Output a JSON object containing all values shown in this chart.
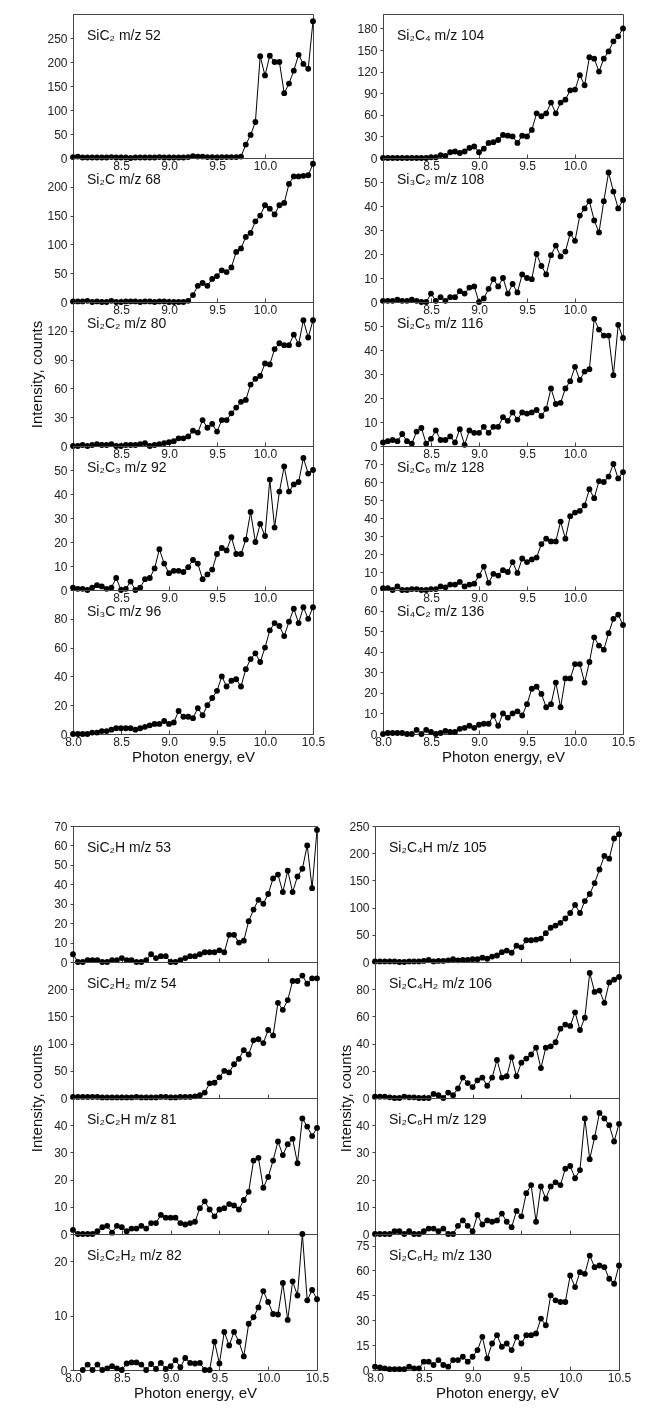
{
  "chart_data": [
    {
      "type": "line",
      "title": "SiC₂ m/z 52",
      "color": "#000000",
      "marker": "circle",
      "line_style": "solid",
      "x": [
        8,
        8.05,
        8.1,
        8.15,
        8.2,
        8.25,
        8.3,
        8.35,
        8.4,
        8.45,
        8.5,
        8.55,
        8.6,
        8.65,
        8.7,
        8.75,
        8.8,
        8.85,
        8.9,
        8.95,
        9,
        9.05,
        9.1,
        9.15,
        9.2,
        9.25,
        9.3,
        9.35,
        9.4,
        9.45,
        9.5,
        9.55,
        9.6,
        9.65,
        9.7,
        9.75,
        9.8,
        9.85,
        9.9,
        9.95,
        10,
        10.05,
        10.1,
        10.15,
        10.2,
        10.25,
        10.3,
        10.35,
        10.4,
        10.45,
        10.5
      ],
      "values": [
        2,
        3,
        1,
        1,
        1,
        1,
        1,
        1,
        2,
        1,
        1,
        1,
        0,
        1,
        1,
        1,
        1,
        1,
        2,
        1,
        1,
        1,
        1,
        1,
        2,
        4,
        3,
        3,
        2,
        2,
        1,
        2,
        2,
        2,
        2,
        3,
        28,
        48,
        75,
        212,
        172,
        213,
        200,
        200,
        135,
        155,
        182,
        215,
        196,
        186,
        285
      ],
      "xlim": [
        8,
        10.5
      ],
      "xticks": [
        {
          "value": 8,
          "label": null
        },
        8.5,
        {
          "value": 9,
          "label": "9.0"
        },
        9.5,
        {
          "value": 10,
          "label": "10.0"
        },
        {
          "value": 10.5,
          "label": null
        }
      ],
      "ylim": [
        0,
        300
      ],
      "yticks": [
        0,
        50,
        100,
        150,
        200,
        250
      ]
    },
    {
      "type": "line",
      "title": "Si₂C m/z 68",
      "color": "#000000",
      "marker": "circle",
      "line_style": "solid",
      "x": [
        8,
        8.05,
        8.1,
        8.15,
        8.2,
        8.25,
        8.3,
        8.35,
        8.4,
        8.45,
        8.5,
        8.55,
        8.6,
        8.65,
        8.7,
        8.75,
        8.8,
        8.85,
        8.9,
        8.95,
        9,
        9.05,
        9.1,
        9.15,
        9.2,
        9.25,
        9.3,
        9.35,
        9.4,
        9.45,
        9.5,
        9.55,
        9.6,
        9.65,
        9.7,
        9.75,
        9.8,
        9.85,
        9.9,
        9.95,
        10,
        10.05,
        10.1,
        10.15,
        10.2,
        10.25,
        10.3,
        10.35,
        10.4,
        10.45,
        10.5
      ],
      "values": [
        1,
        1,
        1,
        2,
        0,
        1,
        0,
        0,
        2,
        0,
        0,
        1,
        1,
        1,
        0,
        1,
        1,
        0,
        1,
        1,
        0,
        0,
        0,
        0,
        2,
        12,
        28,
        33,
        28,
        40,
        45,
        55,
        52,
        60,
        87,
        93,
        113,
        120,
        140,
        150,
        168,
        162,
        152,
        168,
        172,
        205,
        218,
        218,
        219,
        220,
        240
      ],
      "xlim": [
        8,
        10.5
      ],
      "xticks": [
        {
          "value": 8,
          "label": null
        },
        8.5,
        {
          "value": 9,
          "label": "9.0"
        },
        9.5,
        {
          "value": 10,
          "label": "10.0"
        },
        {
          "value": 10.5,
          "label": null
        }
      ],
      "ylim": [
        0,
        250
      ],
      "yticks": [
        0,
        50,
        100,
        150,
        200
      ]
    },
    {
      "type": "line",
      "title": "Si₂C₂ m/z 80",
      "ylabel": "Intensity, counts",
      "color": "#000000",
      "marker": "circle",
      "line_style": "solid",
      "x": [
        8,
        8.05,
        8.1,
        8.15,
        8.2,
        8.25,
        8.3,
        8.35,
        8.4,
        8.45,
        8.5,
        8.55,
        8.6,
        8.65,
        8.7,
        8.75,
        8.8,
        8.85,
        8.9,
        8.95,
        9,
        9.05,
        9.1,
        9.15,
        9.2,
        9.25,
        9.3,
        9.35,
        9.4,
        9.45,
        9.5,
        9.55,
        9.6,
        9.65,
        9.7,
        9.75,
        9.8,
        9.85,
        9.9,
        9.95,
        10,
        10.05,
        10.1,
        10.15,
        10.2,
        10.25,
        10.3,
        10.35,
        10.4,
        10.45,
        10.5
      ],
      "values": [
        0,
        0,
        1,
        0,
        1,
        2,
        1,
        1,
        2,
        0,
        0,
        1,
        1,
        1,
        2,
        3,
        0,
        1,
        2,
        3,
        4,
        5,
        8,
        8,
        10,
        16,
        14,
        27,
        19,
        23,
        15,
        27,
        27,
        34,
        40,
        46,
        48,
        64,
        70,
        73,
        86,
        85,
        101,
        107,
        105,
        105,
        116,
        106,
        131,
        113,
        131
      ],
      "xlim": [
        8,
        10.5
      ],
      "xticks": [
        {
          "value": 8,
          "label": null
        },
        8.5,
        {
          "value": 9,
          "label": "9.0"
        },
        9.5,
        {
          "value": 10,
          "label": "10.0"
        },
        {
          "value": 10.5,
          "label": null
        }
      ],
      "ylim": [
        0,
        150
      ],
      "yticks": [
        0,
        30,
        60,
        90,
        120
      ]
    },
    {
      "type": "line",
      "title": "Si₂C₃ m/z 92",
      "color": "#000000",
      "marker": "circle",
      "line_style": "solid",
      "x": [
        8,
        8.05,
        8.1,
        8.15,
        8.2,
        8.25,
        8.3,
        8.35,
        8.4,
        8.45,
        8.5,
        8.55,
        8.6,
        8.65,
        8.7,
        8.75,
        8.8,
        8.85,
        8.9,
        8.95,
        9,
        9.05,
        9.1,
        9.15,
        9.2,
        9.25,
        9.3,
        9.35,
        9.4,
        9.45,
        9.5,
        9.55,
        9.6,
        9.65,
        9.7,
        9.75,
        9.8,
        9.85,
        9.9,
        9.95,
        10,
        10.05,
        10.1,
        10.15,
        10.2,
        10.25,
        10.3,
        10.35,
        10.4,
        10.45,
        10.5
      ],
      "values": [
        1,
        0.5,
        0.5,
        0,
        1,
        2,
        1.5,
        0.5,
        1,
        5,
        0,
        0.5,
        3.5,
        0,
        1,
        4.5,
        5,
        9,
        17,
        11,
        7,
        8,
        8,
        7.5,
        9.5,
        12.5,
        11,
        4.5,
        6.5,
        8.5,
        15,
        17.5,
        16.5,
        22,
        15,
        15,
        21,
        32.5,
        20,
        27.5,
        22.5,
        46,
        26,
        41,
        51.5,
        41,
        44,
        45,
        55,
        48.5,
        50
      ],
      "xlim": [
        8,
        10.5
      ],
      "xticks": [
        {
          "value": 8,
          "label": null
        },
        8.5,
        {
          "value": 9,
          "label": "9.0"
        },
        9.5,
        {
          "value": 10,
          "label": "10.0"
        },
        {
          "value": 10.5,
          "label": null
        }
      ],
      "ylim": [
        0,
        60
      ],
      "yticks": [
        0,
        10,
        20,
        30,
        40,
        50
      ]
    },
    {
      "type": "line",
      "title": "Si₃C m/z 96",
      "xlabel": "Photon energy, eV",
      "color": "#000000",
      "marker": "circle",
      "line_style": "solid",
      "x": [
        8,
        8.05,
        8.1,
        8.15,
        8.2,
        8.25,
        8.3,
        8.35,
        8.4,
        8.45,
        8.5,
        8.55,
        8.6,
        8.65,
        8.7,
        8.75,
        8.8,
        8.85,
        8.9,
        8.95,
        9,
        9.05,
        9.1,
        9.15,
        9.2,
        9.25,
        9.3,
        9.35,
        9.4,
        9.45,
        9.5,
        9.55,
        9.6,
        9.65,
        9.7,
        9.75,
        9.8,
        9.85,
        9.9,
        9.95,
        10,
        10.05,
        10.1,
        10.15,
        10.2,
        10.25,
        10.3,
        10.35,
        10.4,
        10.45,
        10.5
      ],
      "values": [
        0,
        0,
        0,
        0,
        1,
        1,
        2,
        2,
        3,
        4,
        4,
        4,
        4,
        3,
        4,
        5,
        6,
        7,
        7,
        9,
        7,
        8,
        16,
        12,
        12,
        11,
        18,
        13,
        20,
        25,
        30,
        40,
        33,
        37,
        38,
        33,
        45,
        52,
        56,
        50,
        60,
        72,
        77,
        75,
        68,
        78,
        87,
        77,
        88,
        80,
        88
      ],
      "xlim": [
        8,
        10.5
      ],
      "xticks": [
        {
          "value": 8,
          "label": "8.0"
        },
        8.5,
        {
          "value": 9,
          "label": "9.0"
        },
        9.5,
        {
          "value": 10,
          "label": "10.0"
        },
        10.5
      ],
      "ylim": [
        0,
        100
      ],
      "yticks": [
        0,
        20,
        40,
        60,
        80
      ]
    },
    {
      "type": "line",
      "title": "Si₂C₄ m/z 104",
      "color": "#000000",
      "marker": "circle",
      "line_style": "solid",
      "x": [
        8,
        8.05,
        8.1,
        8.15,
        8.2,
        8.25,
        8.3,
        8.35,
        8.4,
        8.45,
        8.5,
        8.55,
        8.6,
        8.65,
        8.7,
        8.75,
        8.8,
        8.85,
        8.9,
        8.95,
        9,
        9.05,
        9.1,
        9.15,
        9.2,
        9.25,
        9.3,
        9.35,
        9.4,
        9.45,
        9.5,
        9.55,
        9.6,
        9.65,
        9.7,
        9.75,
        9.8,
        9.85,
        9.9,
        9.95,
        10,
        10.05,
        10.1,
        10.15,
        10.2,
        10.25,
        10.3,
        10.35,
        10.4,
        10.45,
        10.5
      ],
      "values": [
        0,
        0,
        0,
        0,
        0,
        0,
        0,
        0,
        0,
        0,
        1,
        1,
        4,
        3,
        8,
        9,
        7,
        9,
        14,
        16,
        8,
        13,
        21,
        22,
        25,
        32,
        31,
        30,
        21,
        31,
        30,
        39,
        62,
        58,
        62,
        77,
        62,
        77,
        81,
        94,
        95,
        115,
        101,
        140,
        138,
        120,
        138,
        148,
        162,
        169,
        180
      ],
      "xlim": [
        8,
        10.5
      ],
      "xticks": [
        {
          "value": 8,
          "label": null
        },
        8.5,
        {
          "value": 9,
          "label": "9.0"
        },
        9.5,
        {
          "value": 10,
          "label": "10.0"
        },
        {
          "value": 10.5,
          "label": null
        }
      ],
      "ylim": [
        0,
        200
      ],
      "yticks": [
        0,
        30,
        60,
        90,
        120,
        150,
        180
      ]
    },
    {
      "type": "line",
      "title": "Si₃C₂ m/z 108",
      "color": "#000000",
      "marker": "circle",
      "line_style": "solid",
      "x": [
        8,
        8.05,
        8.1,
        8.15,
        8.2,
        8.25,
        8.3,
        8.35,
        8.4,
        8.45,
        8.5,
        8.55,
        8.6,
        8.65,
        8.7,
        8.75,
        8.8,
        8.85,
        8.9,
        8.95,
        9,
        9.05,
        9.1,
        9.15,
        9.2,
        9.25,
        9.3,
        9.35,
        9.4,
        9.45,
        9.5,
        9.55,
        9.6,
        9.65,
        9.7,
        9.75,
        9.8,
        9.85,
        9.9,
        9.95,
        10,
        10.05,
        10.1,
        10.15,
        10.2,
        10.25,
        10.3,
        10.35,
        10.4,
        10.45,
        10.5
      ],
      "values": [
        0.5,
        0.5,
        0.5,
        1,
        0.5,
        0.5,
        1,
        0.5,
        0,
        0,
        3.5,
        0.5,
        2,
        0.5,
        2,
        2,
        4.5,
        3.5,
        6,
        6.5,
        0,
        1.5,
        5.5,
        9.5,
        6.5,
        10,
        3.5,
        7.5,
        4,
        11.5,
        10,
        9.5,
        20,
        15,
        11.5,
        19.5,
        23.5,
        19,
        21,
        28.5,
        25.5,
        36,
        39,
        42,
        34,
        29,
        42,
        54,
        46,
        39,
        42.5
      ],
      "xlim": [
        8,
        10.5
      ],
      "xticks": [
        {
          "value": 8,
          "label": null
        },
        8.5,
        {
          "value": 9,
          "label": "9.0"
        },
        9.5,
        {
          "value": 10,
          "label": "10.0"
        },
        {
          "value": 10.5,
          "label": null
        }
      ],
      "ylim": [
        0,
        60
      ],
      "yticks": [
        0,
        10,
        20,
        30,
        40,
        50
      ]
    },
    {
      "type": "line",
      "title": "Si₂C₅ m/z 116",
      "color": "#000000",
      "marker": "circle",
      "line_style": "solid",
      "x": [
        8,
        8.05,
        8.1,
        8.15,
        8.2,
        8.25,
        8.3,
        8.35,
        8.4,
        8.45,
        8.5,
        8.55,
        8.6,
        8.65,
        8.7,
        8.75,
        8.8,
        8.85,
        8.9,
        8.95,
        9,
        9.05,
        9.1,
        9.15,
        9.2,
        9.25,
        9.3,
        9.35,
        9.4,
        9.45,
        9.5,
        9.55,
        9.6,
        9.65,
        9.7,
        9.75,
        9.8,
        9.85,
        9.9,
        9.95,
        10,
        10.05,
        10.1,
        10.15,
        10.2,
        10.25,
        10.3,
        10.35,
        10.4,
        10.45,
        10.5
      ],
      "values": [
        1.5,
        2,
        2.5,
        2,
        5,
        2,
        1,
        6,
        7.5,
        1,
        3,
        6.5,
        2.5,
        2.5,
        4,
        1.5,
        7,
        0.5,
        6.5,
        5.5,
        5.5,
        8,
        5.5,
        8,
        8,
        12,
        10.5,
        14,
        11,
        14,
        13.5,
        14,
        15,
        12.5,
        15.5,
        24,
        17.5,
        18,
        24,
        27,
        33,
        27.5,
        31,
        32,
        53,
        48.5,
        46,
        46,
        29.5,
        50.5,
        45
      ],
      "xlim": [
        8,
        10.5
      ],
      "xticks": [
        {
          "value": 8,
          "label": null
        },
        8.5,
        {
          "value": 9,
          "label": "9.0"
        },
        9.5,
        {
          "value": 10,
          "label": "10.0"
        },
        {
          "value": 10.5,
          "label": null
        }
      ],
      "ylim": [
        0,
        60
      ],
      "yticks": [
        0,
        10,
        20,
        30,
        40,
        50
      ]
    },
    {
      "type": "line",
      "title": "Si₂C₆ m/z 128",
      "color": "#000000",
      "marker": "circle",
      "line_style": "solid",
      "x": [
        8,
        8.05,
        8.1,
        8.15,
        8.2,
        8.25,
        8.3,
        8.35,
        8.4,
        8.45,
        8.5,
        8.55,
        8.6,
        8.65,
        8.7,
        8.75,
        8.8,
        8.85,
        8.9,
        8.95,
        9,
        9.05,
        9.1,
        9.15,
        9.2,
        9.25,
        9.3,
        9.35,
        9.4,
        9.45,
        9.5,
        9.55,
        9.6,
        9.65,
        9.7,
        9.75,
        9.8,
        9.85,
        9.9,
        9.95,
        10,
        10.05,
        10.1,
        10.15,
        10.2,
        10.25,
        10.3,
        10.35,
        10.4,
        10.45,
        10.5
      ],
      "values": [
        1,
        1,
        0,
        2,
        0,
        0,
        0.5,
        0.5,
        0,
        0,
        0.5,
        0.5,
        2,
        1.5,
        3,
        3,
        4.5,
        2,
        3,
        3.5,
        8,
        13,
        4,
        9,
        8,
        11,
        10,
        15.5,
        9.5,
        17.5,
        15.5,
        17,
        18,
        25.5,
        28.5,
        27,
        27,
        38,
        28.5,
        41,
        43,
        44,
        47,
        56,
        51,
        60.5,
        60,
        63,
        70,
        62,
        65.5
      ],
      "xlim": [
        8,
        10.5
      ],
      "xticks": [
        {
          "value": 8,
          "label": null
        },
        8.5,
        {
          "value": 9,
          "label": "9.0"
        },
        9.5,
        {
          "value": 10,
          "label": "10.0"
        },
        {
          "value": 10.5,
          "label": null
        }
      ],
      "ylim": [
        0,
        80
      ],
      "yticks": [
        0,
        10,
        20,
        30,
        40,
        50,
        60,
        70
      ]
    },
    {
      "type": "line",
      "title": "Si₄C₂ m/z 136",
      "xlabel": "Photon energy, eV",
      "color": "#000000",
      "marker": "circle",
      "line_style": "solid",
      "x": [
        8,
        8.05,
        8.1,
        8.15,
        8.2,
        8.25,
        8.3,
        8.35,
        8.4,
        8.45,
        8.5,
        8.55,
        8.6,
        8.65,
        8.7,
        8.75,
        8.8,
        8.85,
        8.9,
        8.95,
        9,
        9.05,
        9.1,
        9.15,
        9.2,
        9.25,
        9.3,
        9.35,
        9.4,
        9.45,
        9.5,
        9.55,
        9.6,
        9.65,
        9.7,
        9.75,
        9.8,
        9.85,
        9.9,
        9.95,
        10,
        10.05,
        10.1,
        10.15,
        10.2,
        10.25,
        10.3,
        10.35,
        10.4,
        10.45,
        10.5
      ],
      "values": [
        0,
        0.5,
        0.5,
        0.5,
        0.5,
        0,
        0,
        2,
        0,
        2,
        1,
        0,
        0.5,
        1.5,
        1,
        1,
        2.5,
        3,
        4,
        3,
        4.5,
        5,
        5,
        9,
        4,
        10,
        8,
        10,
        11,
        9,
        14.5,
        22,
        23,
        19.5,
        13,
        14.5,
        25,
        13,
        27,
        27,
        34,
        34,
        25,
        35,
        47,
        43,
        41,
        49,
        56,
        58,
        53
      ],
      "xlim": [
        8,
        10.5
      ],
      "xticks": [
        {
          "value": 8,
          "label": "8.0"
        },
        8.5,
        {
          "value": 9,
          "label": "9.0"
        },
        9.5,
        {
          "value": 10,
          "label": "10.0"
        },
        10.5
      ],
      "ylim": [
        0,
        70
      ],
      "yticks": [
        0,
        10,
        20,
        30,
        40,
        50,
        60
      ]
    },
    {
      "type": "line",
      "title": "SiC₂H m/z 53",
      "color": "#000000",
      "marker": "circle",
      "line_style": "solid",
      "tick_labels": "y",
      "x": [
        8,
        8.05,
        8.1,
        8.15,
        8.2,
        8.25,
        8.3,
        8.35,
        8.4,
        8.45,
        8.5,
        8.55,
        8.6,
        8.65,
        8.7,
        8.75,
        8.8,
        8.85,
        8.9,
        8.95,
        9,
        9.05,
        9.1,
        9.15,
        9.2,
        9.25,
        9.3,
        9.35,
        9.4,
        9.45,
        9.5,
        9.55,
        9.6,
        9.65,
        9.7,
        9.75,
        9.8,
        9.85,
        9.9,
        9.95,
        10,
        10.05,
        10.1,
        10.15,
        10.2,
        10.25,
        10.3,
        10.35,
        10.4,
        10.45,
        10.5
      ],
      "values": [
        4,
        0,
        0,
        1,
        1,
        1,
        0,
        0,
        1,
        1,
        2,
        1,
        1,
        0,
        0,
        1,
        4,
        2,
        3,
        3,
        0,
        0,
        1,
        2,
        3,
        3,
        4,
        5,
        5,
        5,
        6,
        5,
        14,
        14,
        10,
        11,
        21,
        27,
        32,
        30,
        35,
        43,
        45,
        36,
        47,
        36,
        44,
        48,
        60,
        38,
        68
      ],
      "xlim": [
        8,
        10.5
      ],
      "xticks": [
        8,
        8.5,
        9,
        9.5,
        10,
        10.5
      ],
      "ylim": [
        0,
        70
      ],
      "yticks": [
        0,
        10,
        20,
        30,
        40,
        50,
        60,
        70
      ]
    },
    {
      "type": "line",
      "title": "SiC₂H₂ m/z 54",
      "ylabel": "Intensity, counts",
      "color": "#000000",
      "marker": "circle",
      "line_style": "solid",
      "tick_labels": "y",
      "x": [
        8,
        8.05,
        8.1,
        8.15,
        8.2,
        8.25,
        8.3,
        8.35,
        8.4,
        8.45,
        8.5,
        8.55,
        8.6,
        8.65,
        8.7,
        8.75,
        8.8,
        8.85,
        8.9,
        8.95,
        9,
        9.05,
        9.1,
        9.15,
        9.2,
        9.25,
        9.3,
        9.35,
        9.4,
        9.45,
        9.5,
        9.55,
        9.6,
        9.65,
        9.7,
        9.75,
        9.8,
        9.85,
        9.9,
        9.95,
        10,
        10.05,
        10.1,
        10.15,
        10.2,
        10.25,
        10.3,
        10.35,
        10.4,
        10.45,
        10.5
      ],
      "values": [
        2,
        2,
        2,
        2,
        2,
        2,
        1,
        1,
        1,
        1,
        1,
        1,
        1,
        2,
        1,
        1,
        1,
        1,
        2,
        2,
        1,
        1,
        2,
        2,
        2,
        3,
        5,
        10,
        27,
        28,
        38,
        50,
        47,
        62,
        72,
        88,
        80,
        106,
        108,
        101,
        125,
        115,
        175,
        162,
        180,
        215,
        215,
        225,
        210,
        220,
        220
      ],
      "xlim": [
        8,
        10.5
      ],
      "xticks": [
        8,
        8.5,
        9,
        9.5,
        10,
        10.5
      ],
      "ylim": [
        0,
        250
      ],
      "yticks": [
        0,
        50,
        100,
        150,
        200
      ]
    },
    {
      "type": "line",
      "title": "Si₂C₂H m/z 81",
      "color": "#000000",
      "marker": "circle",
      "line_style": "solid",
      "tick_labels": "y",
      "x": [
        8,
        8.05,
        8.1,
        8.15,
        8.2,
        8.25,
        8.3,
        8.35,
        8.4,
        8.45,
        8.5,
        8.55,
        8.6,
        8.65,
        8.7,
        8.75,
        8.8,
        8.85,
        8.9,
        8.95,
        9,
        9.05,
        9.1,
        9.15,
        9.2,
        9.25,
        9.3,
        9.35,
        9.4,
        9.45,
        9.5,
        9.55,
        9.6,
        9.65,
        9.7,
        9.75,
        9.8,
        9.85,
        9.9,
        9.95,
        10,
        10.05,
        10.1,
        10.15,
        10.2,
        10.25,
        10.3,
        10.35,
        10.4,
        10.45,
        10.5
      ],
      "values": [
        1.5,
        0,
        0,
        0,
        0,
        1,
        2.5,
        3,
        0.5,
        3,
        2.5,
        1,
        2,
        2,
        3,
        2,
        4,
        4,
        7,
        6,
        6,
        6,
        4,
        3.5,
        4,
        4.5,
        9.5,
        12,
        9,
        6.5,
        9,
        9.5,
        11,
        10.5,
        9,
        12.5,
        15.5,
        27,
        28,
        17,
        21,
        27,
        34,
        29,
        33,
        35,
        26,
        42.5,
        39.5,
        36,
        39
      ],
      "xlim": [
        8,
        10.5
      ],
      "xticks": [
        8,
        8.5,
        9,
        9.5,
        10,
        10.5
      ],
      "ylim": [
        0,
        50
      ],
      "yticks": [
        0,
        10,
        20,
        30,
        40
      ]
    },
    {
      "type": "line",
      "title": "Si₂C₂H₂ m/z 82",
      "xlabel": "Photon energy, eV",
      "color": "#000000",
      "marker": "circle",
      "line_style": "solid",
      "x": [
        8.1,
        8.15,
        8.2,
        8.25,
        8.3,
        8.35,
        8.4,
        8.45,
        8.5,
        8.55,
        8.6,
        8.65,
        8.7,
        8.75,
        8.8,
        8.85,
        8.9,
        8.95,
        9,
        9.05,
        9.1,
        9.15,
        9.2,
        9.25,
        9.3,
        9.35,
        9.4,
        9.45,
        9.5,
        9.55,
        9.6,
        9.65,
        9.7,
        9.75,
        9.8,
        9.85,
        9.9,
        9.95,
        10,
        10.05,
        10.1,
        10.15,
        10.2,
        10.25,
        10.3,
        10.35,
        10.4,
        10.45,
        10.5
      ],
      "values": [
        0,
        1,
        0,
        1,
        0,
        0.3,
        0.7,
        0.3,
        0,
        1.2,
        1.4,
        1.4,
        1,
        0,
        1.1,
        0.2,
        1.3,
        0.2,
        0.7,
        1.8,
        0.5,
        2.2,
        1.3,
        1.2,
        1.3,
        0,
        0,
        5.2,
        1.2,
        7,
        4.5,
        7,
        5.2,
        2.5,
        8.5,
        9.7,
        11.5,
        14.5,
        12.5,
        10.3,
        10.2,
        16,
        9.2,
        16.3,
        13.7,
        25,
        12.8,
        14.7,
        13
      ],
      "xlim": [
        8,
        10.5
      ],
      "xticks": [
        {
          "value": 8,
          "label": "8.0"
        },
        8.5,
        {
          "value": 9,
          "label": "9.0"
        },
        9.5,
        {
          "value": 10,
          "label": "10.0"
        },
        10.5
      ],
      "ylim": [
        0,
        25
      ],
      "yticks": [
        0,
        10,
        20
      ]
    },
    {
      "type": "line",
      "title": "Si₂C₄H m/z 105",
      "color": "#000000",
      "marker": "circle",
      "line_style": "solid",
      "tick_labels": "y",
      "x": [
        8,
        8.05,
        8.1,
        8.15,
        8.2,
        8.25,
        8.3,
        8.35,
        8.4,
        8.45,
        8.5,
        8.55,
        8.6,
        8.65,
        8.7,
        8.75,
        8.8,
        8.85,
        8.9,
        8.95,
        9,
        9.05,
        9.1,
        9.15,
        9.2,
        9.25,
        9.3,
        9.35,
        9.4,
        9.45,
        9.5,
        9.55,
        9.6,
        9.65,
        9.7,
        9.75,
        9.8,
        9.85,
        9.9,
        9.95,
        10,
        10.05,
        10.1,
        10.15,
        10.2,
        10.25,
        10.3,
        10.35,
        10.4,
        10.45,
        10.5
      ],
      "values": [
        1,
        1,
        1,
        1,
        1,
        0,
        0,
        1,
        1,
        1,
        2,
        4,
        1,
        2,
        2,
        3,
        5,
        3,
        4,
        4,
        5,
        5,
        8,
        6,
        10,
        12,
        18,
        21,
        17,
        30,
        27,
        40,
        40,
        41,
        43,
        53,
        63,
        67,
        72,
        80,
        90,
        105,
        90,
        112,
        125,
        145,
        170,
        195,
        190,
        227,
        235
      ],
      "xlim": [
        8,
        10.5
      ],
      "xticks": [
        8,
        8.5,
        9,
        9.5,
        10,
        10.5
      ],
      "ylim": [
        0,
        250
      ],
      "yticks": [
        0,
        50,
        100,
        150,
        200,
        250
      ]
    },
    {
      "type": "line",
      "title": "Si₂C₄H₂ m/z 106",
      "ylabel": "Intensity, counts",
      "color": "#000000",
      "marker": "circle",
      "line_style": "solid",
      "tick_labels": "y",
      "x": [
        8,
        8.05,
        8.1,
        8.15,
        8.2,
        8.25,
        8.3,
        8.35,
        8.4,
        8.45,
        8.5,
        8.55,
        8.6,
        8.65,
        8.7,
        8.75,
        8.8,
        8.85,
        8.9,
        8.95,
        9,
        9.05,
        9.1,
        9.15,
        9.2,
        9.25,
        9.3,
        9.35,
        9.4,
        9.45,
        9.5,
        9.55,
        9.6,
        9.65,
        9.7,
        9.75,
        9.8,
        9.85,
        9.9,
        9.95,
        10,
        10.05,
        10.1,
        10.15,
        10.2,
        10.25,
        10.3,
        10.35,
        10.4,
        10.45,
        10.5
      ],
      "values": [
        1,
        1,
        1,
        0.5,
        0,
        0,
        1,
        0.5,
        0.5,
        0,
        0,
        0,
        3,
        2,
        0,
        4,
        2,
        7,
        15,
        11,
        8,
        13,
        15,
        9,
        15,
        28,
        15,
        16,
        30,
        16,
        26,
        29,
        32,
        37,
        22,
        37,
        38,
        41,
        51,
        54,
        53,
        63,
        50,
        59,
        92,
        78,
        79,
        70,
        85,
        87,
        89
      ],
      "xlim": [
        8,
        10.5
      ],
      "xticks": [
        8,
        8.5,
        9,
        9.5,
        10,
        10.5
      ],
      "ylim": [
        0,
        100
      ],
      "yticks": [
        0,
        20,
        40,
        60,
        80
      ]
    },
    {
      "type": "line",
      "title": "Si₂C₆H m/z 129",
      "color": "#000000",
      "marker": "circle",
      "line_style": "solid",
      "tick_labels": "y",
      "x": [
        8,
        8.05,
        8.1,
        8.15,
        8.2,
        8.25,
        8.3,
        8.35,
        8.4,
        8.45,
        8.5,
        8.55,
        8.6,
        8.65,
        8.7,
        8.75,
        8.8,
        8.85,
        8.9,
        8.95,
        9,
        9.05,
        9.1,
        9.15,
        9.2,
        9.25,
        9.3,
        9.35,
        9.4,
        9.45,
        9.5,
        9.55,
        9.6,
        9.65,
        9.7,
        9.75,
        9.8,
        9.85,
        9.9,
        9.95,
        10,
        10.05,
        10.1,
        10.15,
        10.2,
        10.25,
        10.3,
        10.35,
        10.4,
        10.45,
        10.5
      ],
      "values": [
        0,
        0,
        0,
        0,
        1,
        1,
        0,
        1,
        0,
        0,
        1,
        2,
        2,
        1,
        2,
        0,
        0,
        3,
        5,
        3,
        1,
        7,
        3.5,
        5,
        4.5,
        5,
        7.5,
        4.5,
        2.5,
        8.5,
        6.5,
        15,
        18,
        4.5,
        17.5,
        13,
        17.5,
        19,
        18,
        24,
        25,
        20.5,
        23.5,
        42.5,
        27.5,
        35.5,
        44.5,
        42.5,
        40,
        34,
        40.5
      ],
      "xlim": [
        8,
        10.5
      ],
      "xticks": [
        8,
        8.5,
        9,
        9.5,
        10,
        10.5
      ],
      "ylim": [
        0,
        50
      ],
      "yticks": [
        0,
        10,
        20,
        30,
        40
      ]
    },
    {
      "type": "line",
      "title": "Si₂C₆H₂ m/z 130",
      "xlabel": "Photon energy, eV",
      "color": "#000000",
      "marker": "circle",
      "line_style": "solid",
      "x": [
        8,
        8.05,
        8.1,
        8.15,
        8.2,
        8.25,
        8.3,
        8.35,
        8.4,
        8.45,
        8.5,
        8.55,
        8.6,
        8.65,
        8.7,
        8.75,
        8.8,
        8.85,
        8.9,
        8.95,
        9,
        9.05,
        9.1,
        9.15,
        9.2,
        9.25,
        9.3,
        9.35,
        9.4,
        9.45,
        9.5,
        9.55,
        9.6,
        9.65,
        9.7,
        9.75,
        9.8,
        9.85,
        9.9,
        9.95,
        10,
        10.05,
        10.1,
        10.15,
        10.2,
        10.25,
        10.3,
        10.35,
        10.4,
        10.45,
        10.5
      ],
      "values": [
        2,
        1.5,
        1,
        0.5,
        0.5,
        0.5,
        0.5,
        2,
        1,
        1,
        5,
        5,
        3,
        6,
        3,
        2,
        6,
        6,
        8,
        5,
        8,
        12,
        20,
        7,
        16,
        21,
        14,
        16,
        12,
        20,
        16,
        21,
        21,
        22,
        31,
        27,
        45,
        42,
        41,
        41,
        57,
        50,
        59,
        58,
        69,
        62,
        63,
        62,
        55,
        52,
        63
      ],
      "xlim": [
        8,
        10.5
      ],
      "xticks": [
        {
          "value": 8,
          "label": "8.0"
        },
        8.5,
        {
          "value": 9,
          "label": "9.0"
        },
        9.5,
        {
          "value": 10,
          "label": "10.0"
        },
        10.5
      ],
      "ylim": [
        0,
        82
      ],
      "yticks": [
        0,
        15,
        30,
        45,
        60,
        75
      ]
    }
  ]
}
